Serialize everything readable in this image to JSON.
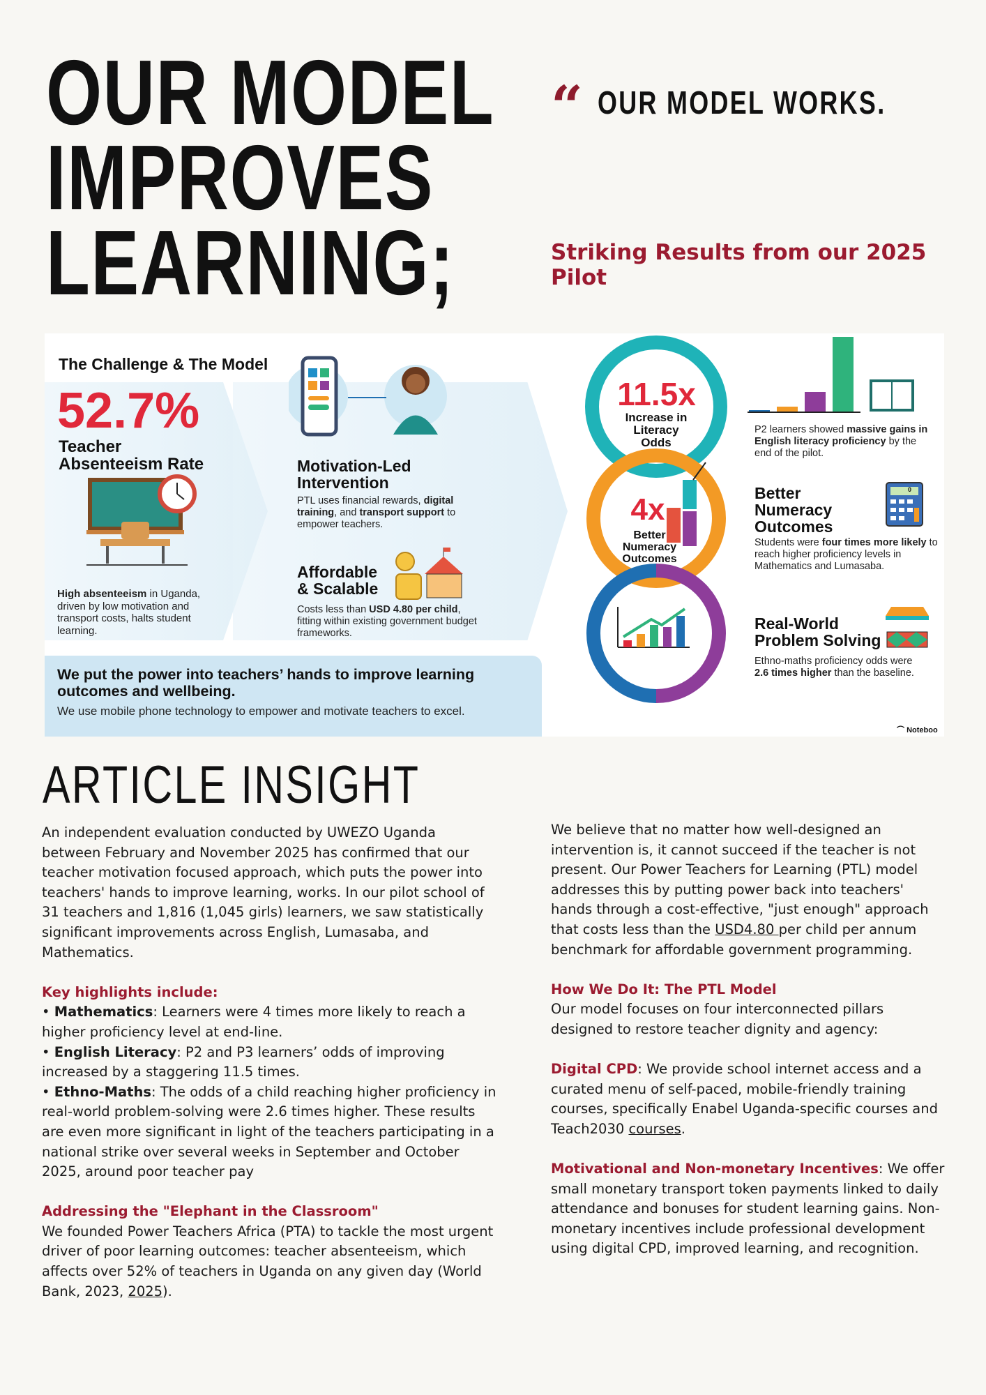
{
  "hero": {
    "title_lines": [
      "OUR MODEL",
      "IMPROVES",
      "LEARNING;"
    ],
    "quote_mark": "“",
    "quote": "OUR MODEL WORKS.",
    "subtitle": "Striking Results from our 2025 Pilot"
  },
  "infographic": {
    "heading": "The Challenge & The Model",
    "stat": "52.7%",
    "stat_label_1": "Teacher",
    "stat_label_2": "Absenteeism Rate",
    "challenge_bold": "High absenteeism",
    "challenge_text": " in Uganda, driven by low motivation and transport costs, halts student learning.",
    "motivation_title_1": "Motivation-Led",
    "motivation_title_2": "Intervention",
    "motivation_a": "PTL uses financial rewards, ",
    "motivation_b": "digital training",
    "motivation_c": ", and ",
    "motivation_d": "transport support",
    "motivation_e": " to empower teachers.",
    "afford_title_1": "Affordable",
    "afford_title_2": "& Scalable",
    "afford_a": "Costs less than ",
    "afford_b": "USD 4.80 per child",
    "afford_c": ", fitting within existing government budget frameworks.",
    "banner_title": "We put the power into teachers’ hands to improve learning outcomes and wellbeing.",
    "banner_sub": "We use mobile phone technology to empower and motivate teachers to excel.",
    "lit_stat": "11.5x",
    "lit_label": "Increase in Literacy Odds",
    "lit_a": "P2 learners showed ",
    "lit_b": "massive gains in English literacy proficiency",
    "lit_c": " by the end of the pilot.",
    "num_stat": "4x",
    "num_label": "Better Numeracy Outcomes",
    "num_title": "Better Numeracy Outcomes",
    "num_a": "Students were ",
    "num_b": "four times more likely",
    "num_c": " to reach higher proficiency levels in Mathematics and Lumasaba.",
    "calc_display": "0",
    "rw_title_1": "Real-World",
    "rw_title_2": "Problem Solving",
    "rw_a": "Ethno-maths proficiency odds were ",
    "rw_b": "2.6 times higher",
    "rw_c": " than the baseline.",
    "watermark": "Noteboo",
    "colors": {
      "red": "#e0283a",
      "teal": "#1fb3b8",
      "orange": "#f39a25",
      "purple": "#8e3d9a",
      "blue": "#1f6fb2",
      "green": "#2fb37c"
    }
  },
  "article": {
    "title": "ARTICLE INSIGHT",
    "intro": "An independent evaluation conducted by UWEZO Uganda between February and November 2025 has confirmed that our teacher motivation focused approach, which puts the power into teachers' hands to improve learning, works. In our pilot school of 31 teachers and 1,816 (1,045 girls) learners, we saw statistically significant improvements across English, Lumasaba, and Mathematics.",
    "highlights_heading": "Key highlights include:",
    "highlights": [
      {
        "label": "Mathematics",
        "text": ": Learners were 4 times more likely to reach a higher proficiency level at end-line."
      },
      {
        "label": "English Literacy",
        "text": ": P2 and P3 learners’ odds of improving increased by a staggering 11.5 times."
      },
      {
        "label": "Ethno-Maths",
        "text": ": The odds of a child reaching higher proficiency in real-world problem-solving were 2.6 times higher. These results are even more significant in light of the teachers participating in a national strike over several weeks in September and October 2025, around poor teacher pay"
      }
    ],
    "elephant_heading": "Addressing the \"Elephant in the Classroom\"",
    "elephant_text": "We founded Power Teachers Africa (PTA) to tackle the most urgent driver of poor learning outcomes: teacher absenteeism, which affects over 52% of teachers in Uganda on any given day (World Bank, 2023, ",
    "elephant_link": "2025",
    "elephant_end": ").",
    "belief_a": "We believe that no matter how well-designed an intervention is, it cannot succeed if the teacher is not present. Our Power Teachers for Learning (PTL) model addresses this by putting power back into teachers' hands through a cost-effective, \"just enough\" approach that costs less than the ",
    "belief_link": "USD4.80 ",
    "belief_b": "per child per annum benchmark for affordable government programming.",
    "how_heading": "How We Do It: The PTL Model",
    "how_text": "Our model focuses on four interconnected pillars designed to restore teacher dignity and agency:",
    "cpd_label": "Digital CPD",
    "cpd_text": ": We provide school internet access and a curated menu of self-paced, mobile-friendly training courses, specifically Enabel Uganda-specific courses and Teach2030 ",
    "cpd_link": "courses",
    "cpd_end": ".",
    "inc_label": "Motivational and Non-monetary Incentives",
    "inc_text": ": We offer small monetary transport token payments linked to daily attendance and bonuses for student learning gains. Non-monetary incentives include professional development using digital CPD, improved learning, and recognition."
  }
}
